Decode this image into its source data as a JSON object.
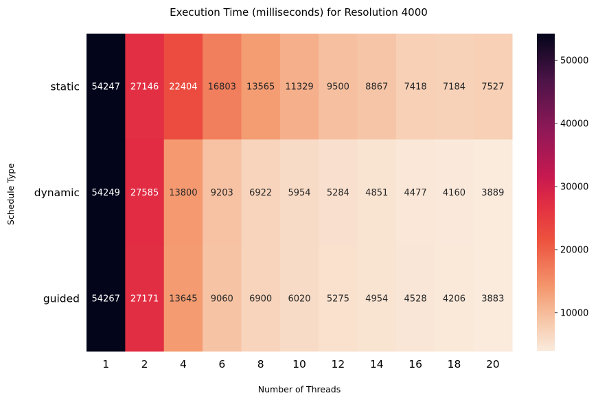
{
  "chart_data": {
    "type": "heatmap",
    "title": "Execution Time (milliseconds) for Resolution 4000",
    "xlabel": "Number of Threads",
    "ylabel": "Schedule Type",
    "x_categories": [
      "1",
      "2",
      "4",
      "6",
      "8",
      "10",
      "12",
      "14",
      "16",
      "18",
      "20"
    ],
    "y_categories": [
      "static",
      "dynamic",
      "guided"
    ],
    "values": [
      [
        54247,
        27146,
        22404,
        16803,
        13565,
        11329,
        9500,
        8867,
        7418,
        7184,
        7527
      ],
      [
        54249,
        27585,
        13800,
        9203,
        6922,
        5954,
        5284,
        4851,
        4477,
        4160,
        3889
      ],
      [
        54267,
        27171,
        13645,
        9060,
        6900,
        6020,
        5275,
        4954,
        4528,
        4206,
        3883
      ]
    ],
    "colorbar": {
      "range": [
        3883,
        54267
      ],
      "ticks": [
        "10000",
        "20000",
        "30000",
        "40000",
        "50000"
      ]
    },
    "colormap": "rocket_r",
    "grid": false,
    "legend": "colorbar-right"
  }
}
